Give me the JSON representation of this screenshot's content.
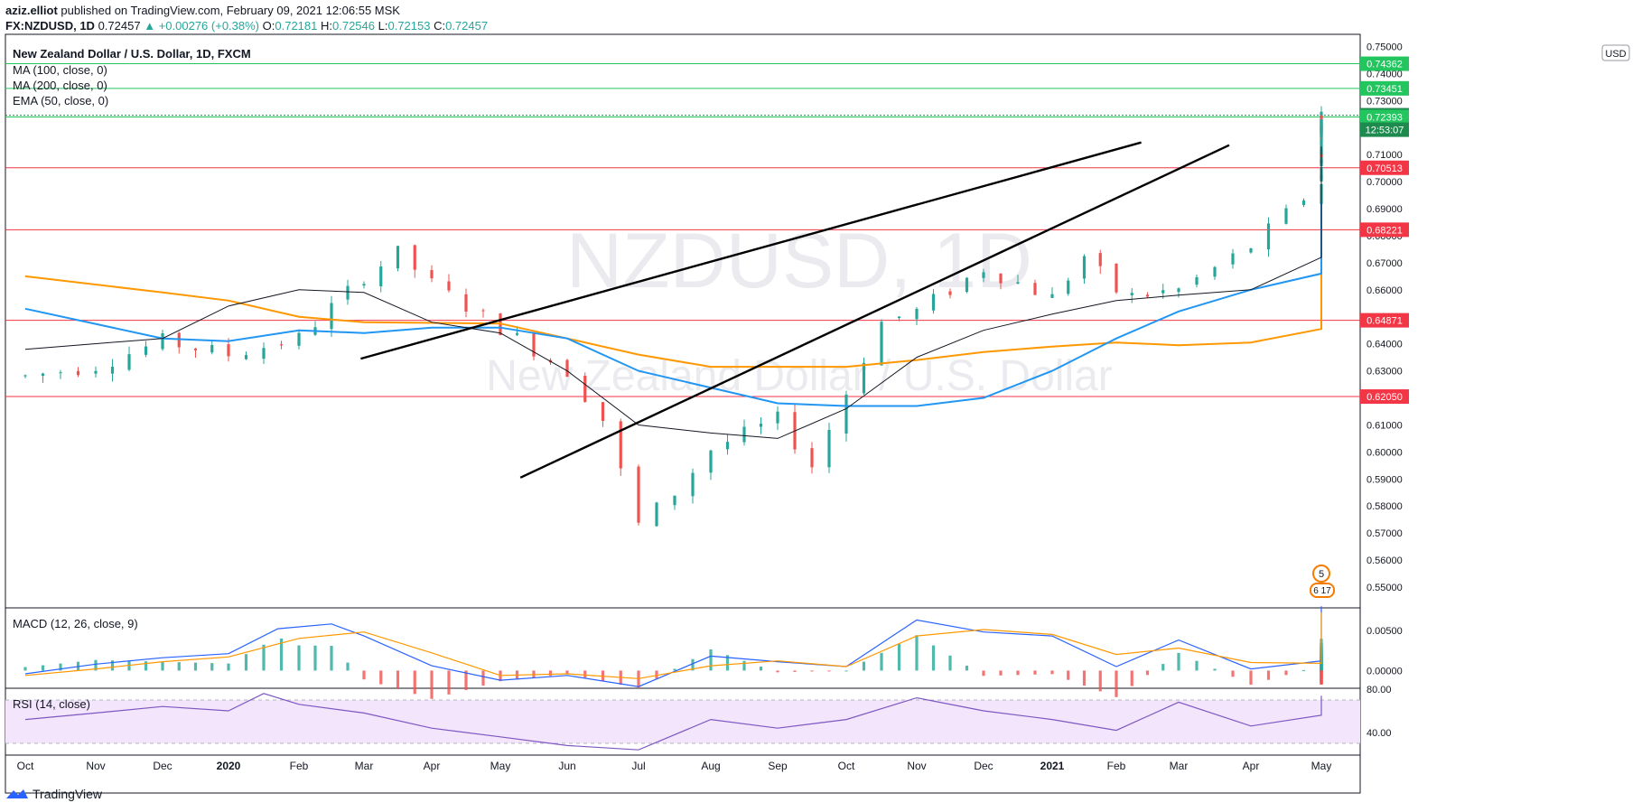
{
  "header": {
    "author": "aziz.elliot",
    "published_text": "published on TradingView.com, February 09, 2021 12:06:55 MSK",
    "symbol": "FX:NZDUSD, 1D",
    "last": "0.72457",
    "change_arrow": "▲",
    "change": "+0.00276 (+0.38%)",
    "o_label": "O:",
    "o": "0.72181",
    "h_label": "H:",
    "h": "0.72546",
    "l_label": "L:",
    "l": "0.72153",
    "c_label": "C:",
    "c": "0.72457"
  },
  "legend": {
    "title": "New Zealand Dollar / U.S. Dollar, 1D, FXCM",
    "ma100": "MA (100, close, 0)",
    "ma200": "MA (200, close, 0)",
    "ema50": "EMA (50, close, 0)",
    "macd": "MACD (12, 26, close, 9)",
    "rsi": "RSI (14, close)"
  },
  "watermark": {
    "symbol": "NZDUSD, 1D",
    "name": "New Zealand Dollar / U.S. Dollar"
  },
  "currency_badge": "USD",
  "brand": "TradingView",
  "events": {
    "badge1": "5",
    "badge2": "6 17"
  },
  "colors": {
    "up": "#26a69a",
    "down": "#ef5350",
    "ma100": "#2196f3",
    "ma200": "#ff9800",
    "ema50": "#131722",
    "support": "#f23645",
    "resistance": "#22c55e",
    "rsi": "#7e57c2"
  },
  "chart_data": {
    "type": "candlestick",
    "title": "New Zealand Dollar / U.S. Dollar, 1D, FXCM",
    "price_axis": {
      "ylim": [
        0.546,
        0.7545
      ],
      "ticks": [
        "0.75000",
        "0.74000",
        "0.73000",
        "0.72000",
        "0.71000",
        "0.70000",
        "0.69000",
        "0.68000",
        "0.67000",
        "0.66000",
        "0.65000",
        "0.64000",
        "0.63000",
        "0.62000",
        "0.61000",
        "0.60000",
        "0.59000",
        "0.58000",
        "0.57000",
        "0.56000",
        "0.55000"
      ]
    },
    "time_axis": {
      "ticks": [
        "Oct",
        "Nov",
        "Dec",
        "2020",
        "Feb",
        "Mar",
        "Apr",
        "May",
        "Jun",
        "Jul",
        "Aug",
        "Sep",
        "Oct",
        "Nov",
        "Dec",
        "2021",
        "Feb",
        "Mar",
        "Apr",
        "May"
      ],
      "bold": [
        "2020",
        "2021"
      ]
    },
    "horizontal_levels": [
      {
        "value": 0.74362,
        "label": "0.74362",
        "kind": "resistance"
      },
      {
        "value": 0.73451,
        "label": "0.73451",
        "kind": "resistance"
      },
      {
        "value": 0.72457,
        "label": "0.72457",
        "kind": "last"
      },
      {
        "value": 0.72393,
        "label": "0.72393",
        "kind": "resistance"
      },
      {
        "value": 0.70513,
        "label": "0.70513",
        "kind": "support"
      },
      {
        "value": 0.68221,
        "label": "0.68221",
        "kind": "support"
      },
      {
        "value": 0.64871,
        "label": "0.64871",
        "kind": "support"
      },
      {
        "value": 0.6205,
        "label": "0.62050",
        "kind": "support"
      }
    ],
    "countdown": "12:53:07",
    "trendlines": [
      {
        "from": [
          "Mar",
          0.6345
        ],
        "to": [
          "Feb",
          0.7145
        ]
      },
      {
        "from": [
          "May",
          0.5905
        ],
        "to": [
          "Mar",
          0.7135
        ]
      }
    ],
    "close_path": [
      [
        0,
        0.628
      ],
      [
        1,
        0.632
      ],
      [
        2,
        0.641
      ],
      [
        3,
        0.636
      ],
      [
        4,
        0.642
      ],
      [
        5,
        0.665
      ],
      [
        5.5,
        0.6735
      ],
      [
        6,
        0.662
      ],
      [
        7,
        0.646
      ],
      [
        8,
        0.63
      ],
      [
        8.5,
        0.612
      ],
      [
        9,
        0.573
      ],
      [
        9.5,
        0.585
      ],
      [
        10,
        0.601
      ],
      [
        11,
        0.612
      ],
      [
        11.5,
        0.595
      ],
      [
        12,
        0.622
      ],
      [
        12.5,
        0.648
      ],
      [
        13,
        0.652
      ],
      [
        14,
        0.668
      ],
      [
        15,
        0.657
      ],
      [
        15.5,
        0.6725
      ],
      [
        16.1,
        0.657
      ],
      [
        17,
        0.66
      ],
      [
        18,
        0.676
      ],
      [
        19,
        0.7
      ],
      [
        20,
        0.707
      ],
      [
        21,
        0.712
      ],
      [
        22,
        0.728
      ],
      [
        22.5,
        0.719
      ],
      [
        23,
        0.721
      ],
      [
        23.3,
        0.7246
      ]
    ],
    "ma100_path": [
      [
        0,
        0.653
      ],
      [
        2,
        0.642
      ],
      [
        3,
        0.641
      ],
      [
        4,
        0.645
      ],
      [
        5,
        0.644
      ],
      [
        6,
        0.646
      ],
      [
        7,
        0.646
      ],
      [
        8,
        0.642
      ],
      [
        9,
        0.63
      ],
      [
        11,
        0.618
      ],
      [
        12,
        0.617
      ],
      [
        13,
        0.617
      ],
      [
        14,
        0.62
      ],
      [
        15,
        0.63
      ],
      [
        16,
        0.642
      ],
      [
        17,
        0.652
      ],
      [
        18,
        0.66
      ],
      [
        19,
        0.666
      ],
      [
        20,
        0.672
      ],
      [
        21,
        0.681
      ],
      [
        22,
        0.6875
      ],
      [
        23.3,
        0.6925
      ]
    ],
    "ma200_path": [
      [
        0,
        0.665
      ],
      [
        2,
        0.659
      ],
      [
        3,
        0.656
      ],
      [
        4,
        0.65
      ],
      [
        5,
        0.648
      ],
      [
        7,
        0.6475
      ],
      [
        8,
        0.642
      ],
      [
        9,
        0.636
      ],
      [
        10,
        0.6315
      ],
      [
        12,
        0.6315
      ],
      [
        13,
        0.634
      ],
      [
        14,
        0.637
      ],
      [
        15,
        0.639
      ],
      [
        16,
        0.6405
      ],
      [
        17,
        0.6395
      ],
      [
        18,
        0.6405
      ],
      [
        19,
        0.6455
      ],
      [
        20,
        0.65
      ],
      [
        21,
        0.658
      ],
      [
        22,
        0.667
      ],
      [
        23.3,
        0.6705
      ]
    ],
    "ema50_path": [
      [
        0,
        0.638
      ],
      [
        2,
        0.642
      ],
      [
        3,
        0.654
      ],
      [
        4,
        0.66
      ],
      [
        5,
        0.659
      ],
      [
        6,
        0.648
      ],
      [
        7,
        0.644
      ],
      [
        8,
        0.63
      ],
      [
        9,
        0.61
      ],
      [
        10,
        0.607
      ],
      [
        11,
        0.605
      ],
      [
        12,
        0.616
      ],
      [
        13,
        0.635
      ],
      [
        14,
        0.645
      ],
      [
        15,
        0.651
      ],
      [
        16,
        0.656
      ],
      [
        17,
        0.658
      ],
      [
        18,
        0.66
      ],
      [
        19,
        0.672
      ],
      [
        20,
        0.688
      ],
      [
        21,
        0.703
      ],
      [
        22,
        0.709
      ],
      [
        23.3,
        0.713
      ]
    ],
    "macd_axis": {
      "ylim": [
        -0.0022,
        0.0078
      ],
      "ticks": [
        "0.00500",
        "0.00000"
      ]
    },
    "macd": [
      [
        0,
        -0.0004
      ],
      [
        1,
        0.0008
      ],
      [
        2,
        0.0016
      ],
      [
        3,
        0.0021
      ],
      [
        3.7,
        0.0052
      ],
      [
        4.5,
        0.0058
      ],
      [
        5,
        0.0043
      ],
      [
        6,
        0.0006
      ],
      [
        7,
        -0.0012
      ],
      [
        8,
        -0.0006
      ],
      [
        9,
        -0.002
      ],
      [
        10,
        0.0018
      ],
      [
        11,
        0.0011
      ],
      [
        12,
        0.0005
      ],
      [
        13,
        0.0063
      ],
      [
        14,
        0.0048
      ],
      [
        15,
        0.0043
      ],
      [
        16,
        0.0005
      ],
      [
        17,
        0.0038
      ],
      [
        18,
        0.0002
      ],
      [
        19,
        0.0012
      ],
      [
        20,
        0.007
      ],
      [
        21,
        0.008
      ],
      [
        22,
        0.0058
      ],
      [
        23.3,
        0.0015
      ]
    ],
    "macd_signal": [
      [
        0,
        -0.0006
      ],
      [
        1,
        0.0002
      ],
      [
        2,
        0.0011
      ],
      [
        3,
        0.0017
      ],
      [
        4,
        0.004
      ],
      [
        5,
        0.0048
      ],
      [
        6,
        0.0022
      ],
      [
        7,
        -0.0006
      ],
      [
        8,
        -0.0004
      ],
      [
        9,
        -0.001
      ],
      [
        10,
        0.0006
      ],
      [
        11,
        0.0012
      ],
      [
        12,
        0.0005
      ],
      [
        13,
        0.0043
      ],
      [
        14,
        0.0051
      ],
      [
        15,
        0.0045
      ],
      [
        16,
        0.002
      ],
      [
        17,
        0.0028
      ],
      [
        18,
        0.001
      ],
      [
        19,
        0.0009
      ],
      [
        20,
        0.0052
      ],
      [
        21,
        0.0072
      ],
      [
        22,
        0.0066
      ],
      [
        23.3,
        0.0022
      ]
    ],
    "rsi_axis": {
      "ylim": [
        20,
        80
      ],
      "ticks": [
        "80.00",
        "40.00"
      ],
      "band": [
        30,
        70
      ]
    },
    "rsi": [
      [
        0,
        52
      ],
      [
        1,
        58
      ],
      [
        2,
        64
      ],
      [
        3,
        60
      ],
      [
        3.5,
        76
      ],
      [
        4,
        66
      ],
      [
        5,
        58
      ],
      [
        6,
        44
      ],
      [
        7,
        36
      ],
      [
        8,
        28
      ],
      [
        9,
        24
      ],
      [
        10,
        52
      ],
      [
        11,
        44
      ],
      [
        12,
        52
      ],
      [
        13,
        72
      ],
      [
        14,
        60
      ],
      [
        15,
        52
      ],
      [
        16,
        42
      ],
      [
        17,
        68
      ],
      [
        18,
        46
      ],
      [
        19,
        56
      ],
      [
        20,
        74
      ],
      [
        21,
        71
      ],
      [
        22,
        63
      ],
      [
        23.3,
        58
      ]
    ]
  }
}
